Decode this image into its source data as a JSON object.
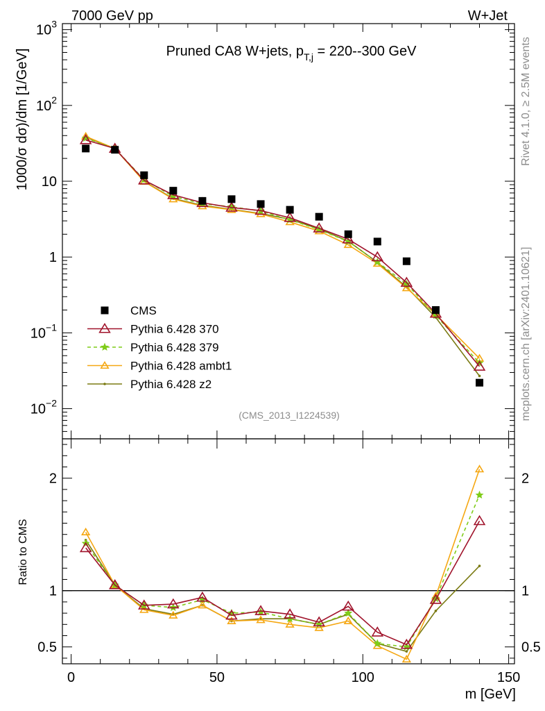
{
  "header": {
    "energy": "7000 GeV pp",
    "process": "W+Jet"
  },
  "side_notes": {
    "rivet": "Rivet 4.1.0, ≥ 2.5M events",
    "site": "mcplots.cern.ch [arXiv:2401.10621]"
  },
  "colors": {
    "CMS": "#000000",
    "370": "#a0132b",
    "379": "#7fcc19",
    "ambt1": "#f5a712",
    "z2": "#7a7a12",
    "ref_line": "#000000"
  },
  "chart_data": [
    {
      "type": "line",
      "title_main": "Pruned CA8 W+jets, p",
      "title_sub": "T,j",
      "title_rest": " = 220--300 GeV",
      "ylabel": "1000/σ  dσ)/dm [1/GeV]",
      "yscale": "log",
      "ylim": [
        0.004,
        1200
      ],
      "xlim": [
        -3,
        152
      ],
      "y_ticks": [
        {
          "v": 0.01,
          "base": "10",
          "exp": "−2"
        },
        {
          "v": 0.1,
          "base": "10",
          "exp": "−1"
        },
        {
          "v": 1,
          "base": "1",
          "exp": ""
        },
        {
          "v": 10,
          "base": "10",
          "exp": ""
        },
        {
          "v": 100,
          "base": "10",
          "exp": "2"
        },
        {
          "v": 1000,
          "base": "10",
          "exp": "3"
        }
      ],
      "watermark": "(CMS_2013_I1224539)",
      "x": [
        5,
        15,
        25,
        35,
        45,
        55,
        65,
        75,
        85,
        95,
        105,
        115,
        125,
        140
      ],
      "series": [
        {
          "name": "CMS",
          "key": "CMS",
          "style": "square",
          "values": [
            27,
            26,
            12,
            7.5,
            5.5,
            5.8,
            5.0,
            4.2,
            3.4,
            2.0,
            1.6,
            0.88,
            0.2,
            0.022
          ]
        },
        {
          "name": "Pythia 6.428 370",
          "key": "370",
          "style": "triangle-open",
          "values": [
            35,
            27,
            10.3,
            6.6,
            5.2,
            4.5,
            4.1,
            3.3,
            2.4,
            1.72,
            1.0,
            0.46,
            0.18,
            0.036
          ]
        },
        {
          "name": "Pythia 6.428 379",
          "key": "379",
          "style": "star-dashed",
          "values": [
            37,
            27,
            10.5,
            6.3,
            5.05,
            4.6,
            4.05,
            3.1,
            2.3,
            1.6,
            0.86,
            0.44,
            0.17,
            0.04
          ]
        },
        {
          "name": "Pythia 6.428 ambt1",
          "key": "ambt1",
          "style": "triangle-open-small",
          "values": [
            39,
            27,
            9.9,
            5.8,
            4.7,
            4.2,
            3.7,
            2.9,
            2.2,
            1.45,
            0.82,
            0.39,
            0.175,
            0.046
          ]
        },
        {
          "name": "Pythia 6.428 z2",
          "key": "z2",
          "style": "dot",
          "values": [
            38,
            27,
            10.0,
            5.9,
            4.8,
            4.25,
            3.75,
            3.15,
            2.35,
            1.62,
            0.85,
            0.4,
            0.16,
            0.027
          ]
        }
      ]
    },
    {
      "type": "line",
      "ylabel": "Ratio to CMS",
      "xlabel": "m [GeV]",
      "ylim": [
        0.35,
        2.35
      ],
      "xlim": [
        -3,
        152
      ],
      "y_ticks": [
        0.5,
        1,
        2
      ],
      "x_ticks": [
        0,
        50,
        100,
        150
      ],
      "reference": 1,
      "x": [
        5,
        15,
        25,
        35,
        45,
        55,
        65,
        75,
        85,
        95,
        105,
        115,
        125,
        140
      ],
      "series": [
        {
          "name": "Pythia 6.428 370",
          "key": "370",
          "values": [
            1.38,
            1.05,
            0.87,
            0.88,
            0.94,
            0.78,
            0.82,
            0.79,
            0.72,
            0.86,
            0.63,
            0.52,
            0.92,
            1.62
          ]
        },
        {
          "name": "Pythia 6.428 379",
          "key": "379",
          "values": [
            1.42,
            1.05,
            0.87,
            0.85,
            0.92,
            0.8,
            0.81,
            0.75,
            0.7,
            0.8,
            0.53,
            0.5,
            0.93,
            1.85
          ]
        },
        {
          "name": "Pythia 6.428 ambt1",
          "key": "ambt1",
          "values": [
            1.52,
            1.05,
            0.83,
            0.78,
            0.87,
            0.73,
            0.74,
            0.7,
            0.67,
            0.73,
            0.51,
            0.39,
            0.95,
            2.08
          ]
        },
        {
          "name": "Pythia 6.428 z2",
          "key": "z2",
          "values": [
            1.45,
            1.05,
            0.84,
            0.79,
            0.87,
            0.73,
            0.75,
            0.75,
            0.7,
            0.79,
            0.53,
            0.46,
            0.82,
            1.22
          ]
        }
      ]
    }
  ]
}
